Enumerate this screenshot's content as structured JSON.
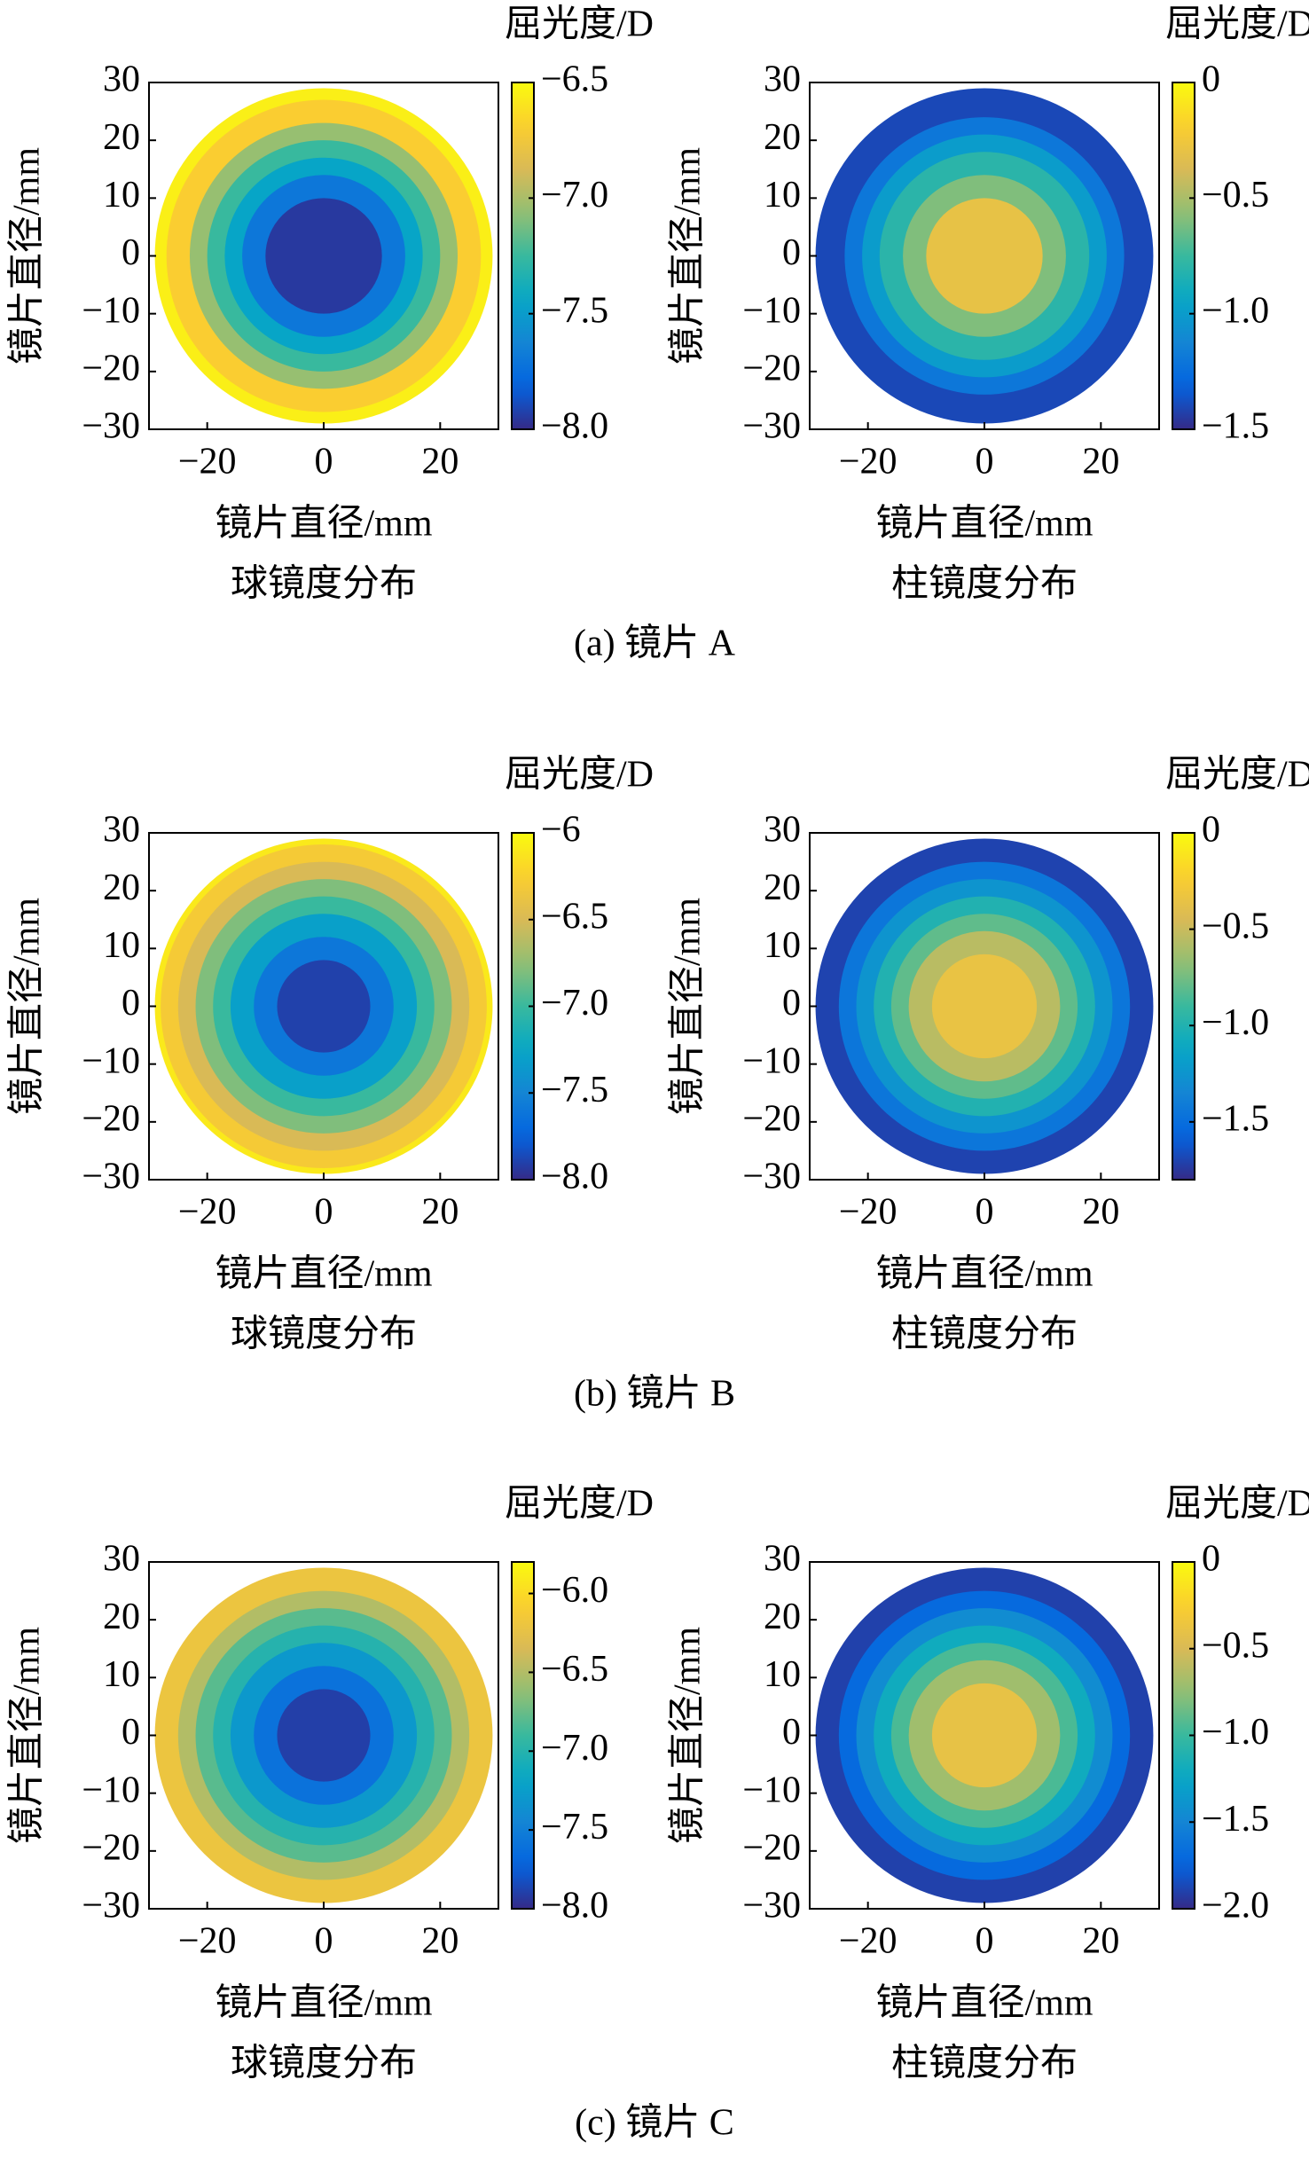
{
  "chart_data": [
    {
      "type": "contour",
      "title": "球镜度分布",
      "xlabel": "镜片直径/mm",
      "ylabel": "镜片直径/mm",
      "colorbar_label": "屈光度/D",
      "colormap": "parula",
      "xlim": [
        -30,
        30
      ],
      "ylim": [
        -30,
        30
      ],
      "xticks": [
        {
          "value": -20,
          "label": "−20"
        },
        0,
        20
      ],
      "yticks": [
        {
          "value": -30,
          "label": "−30"
        },
        {
          "value": -20,
          "label": "−20"
        },
        {
          "value": -10,
          "label": "−10"
        },
        0,
        10,
        20,
        30
      ],
      "clim": [
        -8.0,
        -6.5
      ],
      "cticks": [
        {
          "value": -8.0,
          "label": "−8.0"
        },
        {
          "value": -7.5,
          "label": "−7.5"
        },
        {
          "value": -7.0,
          "label": "−7.0"
        },
        {
          "value": -6.5,
          "label": "−6.5"
        }
      ],
      "radii": [
        29,
        27,
        23,
        20,
        17,
        14,
        10
      ],
      "values": [
        -6.55,
        -6.7,
        -7.05,
        -7.25,
        -7.45,
        -7.7,
        -7.95
      ]
    },
    {
      "type": "contour",
      "title": "柱镜度分布",
      "xlabel": "镜片直径/mm",
      "ylabel": "镜片直径/mm",
      "colorbar_label": "屈光度/D",
      "colormap": "parula",
      "xlim": [
        -30,
        30
      ],
      "ylim": [
        -30,
        30
      ],
      "xticks": [
        {
          "value": -20,
          "label": "−20"
        },
        0,
        20
      ],
      "yticks": [
        {
          "value": -30,
          "label": "−30"
        },
        {
          "value": -20,
          "label": "−20"
        },
        {
          "value": -10,
          "label": "−10"
        },
        0,
        10,
        20,
        30
      ],
      "clim": [
        -1.5,
        0
      ],
      "cticks": [
        {
          "value": -1.5,
          "label": "−1.5"
        },
        {
          "value": -1.0,
          "label": "−1.0"
        },
        {
          "value": -0.5,
          "label": "−0.5"
        },
        0
      ],
      "radii": [
        29,
        24,
        21,
        18,
        14,
        10
      ],
      "values": [
        -1.4,
        -1.2,
        -1.0,
        -0.8,
        -0.6,
        -0.3
      ]
    },
    {
      "type": "contour",
      "title": "球镜度分布",
      "xlabel": "镜片直径/mm",
      "ylabel": "镜片直径/mm",
      "colorbar_label": "屈光度/D",
      "colormap": "parula",
      "xlim": [
        -30,
        30
      ],
      "ylim": [
        -30,
        30
      ],
      "xticks": [
        {
          "value": -20,
          "label": "−20"
        },
        0,
        20
      ],
      "yticks": [
        {
          "value": -30,
          "label": "−30"
        },
        {
          "value": -20,
          "label": "−20"
        },
        {
          "value": -10,
          "label": "−10"
        },
        0,
        10,
        20,
        30
      ],
      "clim": [
        -8.0,
        -6
      ],
      "cticks": [
        {
          "value": -8.0,
          "label": "−8.0"
        },
        {
          "value": -7.5,
          "label": "−7.5"
        },
        {
          "value": -7.0,
          "label": "−7.0"
        },
        {
          "value": -6.5,
          "label": "−6.5"
        },
        {
          "value": -6,
          "label": "−6"
        }
      ],
      "radii": [
        29,
        28,
        25,
        22,
        19,
        16,
        12,
        8
      ],
      "values": [
        -6.1,
        -6.3,
        -6.5,
        -6.8,
        -7.0,
        -7.3,
        -7.6,
        -7.9
      ]
    },
    {
      "type": "contour",
      "title": "柱镜度分布",
      "xlabel": "镜片直径/mm",
      "ylabel": "镜片直径/mm",
      "colorbar_label": "屈光度/D",
      "colormap": "parula",
      "xlim": [
        -30,
        30
      ],
      "ylim": [
        -30,
        30
      ],
      "xticks": [
        {
          "value": -20,
          "label": "−20"
        },
        0,
        20
      ],
      "yticks": [
        {
          "value": -30,
          "label": "−30"
        },
        {
          "value": -20,
          "label": "−20"
        },
        {
          "value": -10,
          "label": "−10"
        },
        0,
        10,
        20,
        30
      ],
      "clim": [
        -1.8,
        0
      ],
      "cticks": [
        {
          "value": -1.5,
          "label": "−1.5"
        },
        {
          "value": -1.0,
          "label": "−1.0"
        },
        {
          "value": -0.5,
          "label": "−0.5"
        },
        0
      ],
      "radii": [
        29,
        25,
        22,
        19,
        16,
        13,
        9
      ],
      "values": [
        -1.7,
        -1.45,
        -1.25,
        -1.0,
        -0.8,
        -0.55,
        -0.35
      ]
    },
    {
      "type": "contour",
      "title": "球镜度分布",
      "xlabel": "镜片直径/mm",
      "ylabel": "镜片直径/mm",
      "colorbar_label": "屈光度/D",
      "colormap": "parula",
      "xlim": [
        -30,
        30
      ],
      "ylim": [
        -30,
        30
      ],
      "xticks": [
        {
          "value": -20,
          "label": "−20"
        },
        0,
        20
      ],
      "yticks": [
        {
          "value": -30,
          "label": "−30"
        },
        {
          "value": -20,
          "label": "−20"
        },
        {
          "value": -10,
          "label": "−10"
        },
        0,
        10,
        20,
        30
      ],
      "clim": [
        -8.0,
        -5.8
      ],
      "cticks": [
        {
          "value": -8.0,
          "label": "−8.0"
        },
        {
          "value": -7.5,
          "label": "−7.5"
        },
        {
          "value": -7.0,
          "label": "−7.0"
        },
        {
          "value": -6.5,
          "label": "−6.5"
        },
        {
          "value": -6.0,
          "label": "−6.0"
        }
      ],
      "radii": [
        29,
        25,
        22,
        19,
        16,
        12,
        8
      ],
      "values": [
        -6.2,
        -6.5,
        -6.8,
        -7.0,
        -7.3,
        -7.6,
        -7.9
      ]
    },
    {
      "type": "contour",
      "title": "柱镜度分布",
      "xlabel": "镜片直径/mm",
      "ylabel": "镜片直径/mm",
      "colorbar_label": "屈光度/D",
      "colormap": "parula",
      "xlim": [
        -30,
        30
      ],
      "ylim": [
        -30,
        30
      ],
      "xticks": [
        {
          "value": -20,
          "label": "−20"
        },
        0,
        20
      ],
      "yticks": [
        {
          "value": -30,
          "label": "−30"
        },
        {
          "value": -20,
          "label": "−20"
        },
        {
          "value": -10,
          "label": "−10"
        },
        0,
        10,
        20,
        30
      ],
      "clim": [
        -2.0,
        0
      ],
      "cticks": [
        {
          "value": -2.0,
          "label": "−2.0"
        },
        {
          "value": -1.5,
          "label": "−1.5"
        },
        {
          "value": -1.0,
          "label": "−1.0"
        },
        {
          "value": -0.5,
          "label": "−0.5"
        },
        0
      ],
      "radii": [
        29,
        25,
        22,
        19,
        16,
        13,
        9
      ],
      "values": [
        -1.9,
        -1.7,
        -1.45,
        -1.2,
        -0.95,
        -0.7,
        -0.4
      ]
    }
  ],
  "captions": [
    "(a) 镜片 A",
    "(b) 镜片 B",
    "(c) 镜片 C"
  ]
}
